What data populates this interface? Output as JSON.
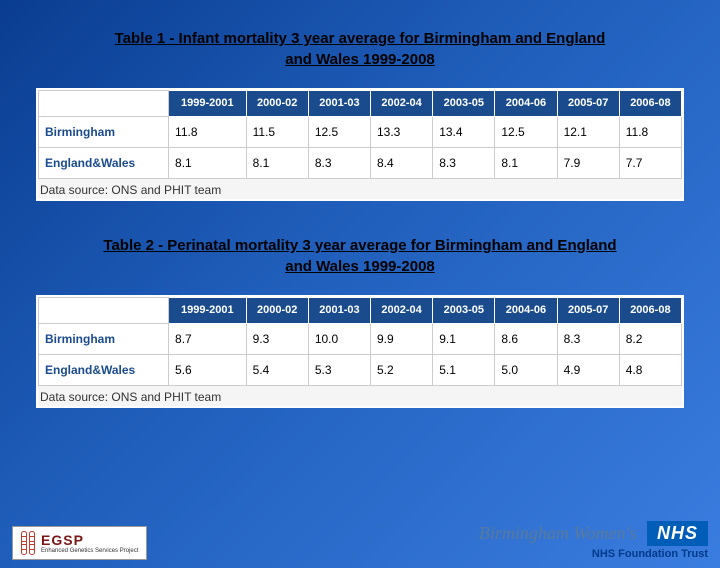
{
  "table1": {
    "title": "Table 1 - Infant mortality 3 year average for Birmingham and England and Wales 1999-2008",
    "columns": [
      "1999-2001",
      "2000-02",
      "2001-03",
      "2002-04",
      "2003-05",
      "2004-06",
      "2005-07",
      "2006-08"
    ],
    "rows": [
      {
        "label": "Birmingham",
        "values": [
          "11.8",
          "11.5",
          "12.5",
          "13.3",
          "13.4",
          "12.5",
          "12.1",
          "11.8"
        ]
      },
      {
        "label": "England&Wales",
        "values": [
          "8.1",
          "8.1",
          "8.3",
          "8.4",
          "8.3",
          "8.1",
          "7.9",
          "7.7"
        ]
      }
    ],
    "source": "Data source: ONS and PHIT team"
  },
  "table2": {
    "title": "Table 2 - Perinatal mortality 3 year average for Birmingham and England and Wales 1999-2008",
    "columns": [
      "1999-2001",
      "2000-02",
      "2001-03",
      "2002-04",
      "2003-05",
      "2004-06",
      "2005-07",
      "2006-08"
    ],
    "rows": [
      {
        "label": "Birmingham",
        "values": [
          "8.7",
          "9.3",
          "10.0",
          "9.9",
          "9.1",
          "8.6",
          "8.3",
          "8.2"
        ]
      },
      {
        "label": "England&Wales",
        "values": [
          "5.6",
          "5.4",
          "5.3",
          "5.2",
          "5.1",
          "5.0",
          "4.9",
          "4.8"
        ]
      }
    ],
    "source": "Data source: ONS and PHIT team"
  },
  "footer": {
    "egsp_big": "EGSP",
    "egsp_small": "Enhanced Genetics Services Project",
    "bw": "Birmingham Women's",
    "nhs": "NHS",
    "nhs_sub": "NHS Foundation Trust"
  },
  "style": {
    "header_bg": "#1a4b8c",
    "header_fg": "#ffffff",
    "rowlabel_color": "#1a4b8c",
    "nhs_bg": "#005eb8"
  }
}
